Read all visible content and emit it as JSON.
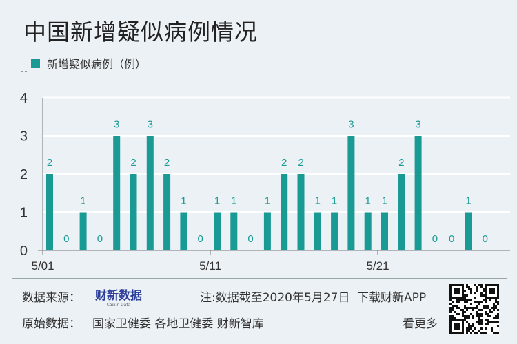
{
  "title": "中国新增疑似病例情况",
  "legend": {
    "label": "新增疑似病例（例）",
    "color": "#1a9a94"
  },
  "chart_data": {
    "type": "bar",
    "categories": [
      "5/01",
      "5/02",
      "5/03",
      "5/04",
      "5/05",
      "5/06",
      "5/07",
      "5/08",
      "5/09",
      "5/10",
      "5/11",
      "5/12",
      "5/13",
      "5/14",
      "5/15",
      "5/16",
      "5/17",
      "5/18",
      "5/19",
      "5/20",
      "5/21",
      "5/22",
      "5/23",
      "5/24",
      "5/25",
      "5/26",
      "5/27"
    ],
    "series": [
      {
        "name": "新增疑似病例（例）",
        "values": [
          2,
          0,
          1,
          0,
          3,
          2,
          3,
          2,
          1,
          0,
          1,
          1,
          0,
          1,
          2,
          2,
          1,
          1,
          3,
          1,
          1,
          2,
          3,
          0,
          0,
          1,
          0
        ]
      }
    ],
    "x_tick_labels": [
      "5/01",
      "5/11",
      "5/21"
    ],
    "y_ticks": [
      0,
      1,
      2,
      3,
      4
    ],
    "ylim": [
      0,
      4
    ],
    "grid": true,
    "legend_position": "top-left",
    "bar_color": "#1a9a94",
    "data_labels": true
  },
  "footer": {
    "source_label": "数据来源：",
    "logo_text": "财新数据",
    "logo_sub": "Caixin Data",
    "note": "注:数据截至2020年5月27日",
    "download": "下载财新APP",
    "raw_label": "原始数据：",
    "raw_sources": "国家卫健委 各地卫健委 财新智库",
    "more": "看更多"
  }
}
